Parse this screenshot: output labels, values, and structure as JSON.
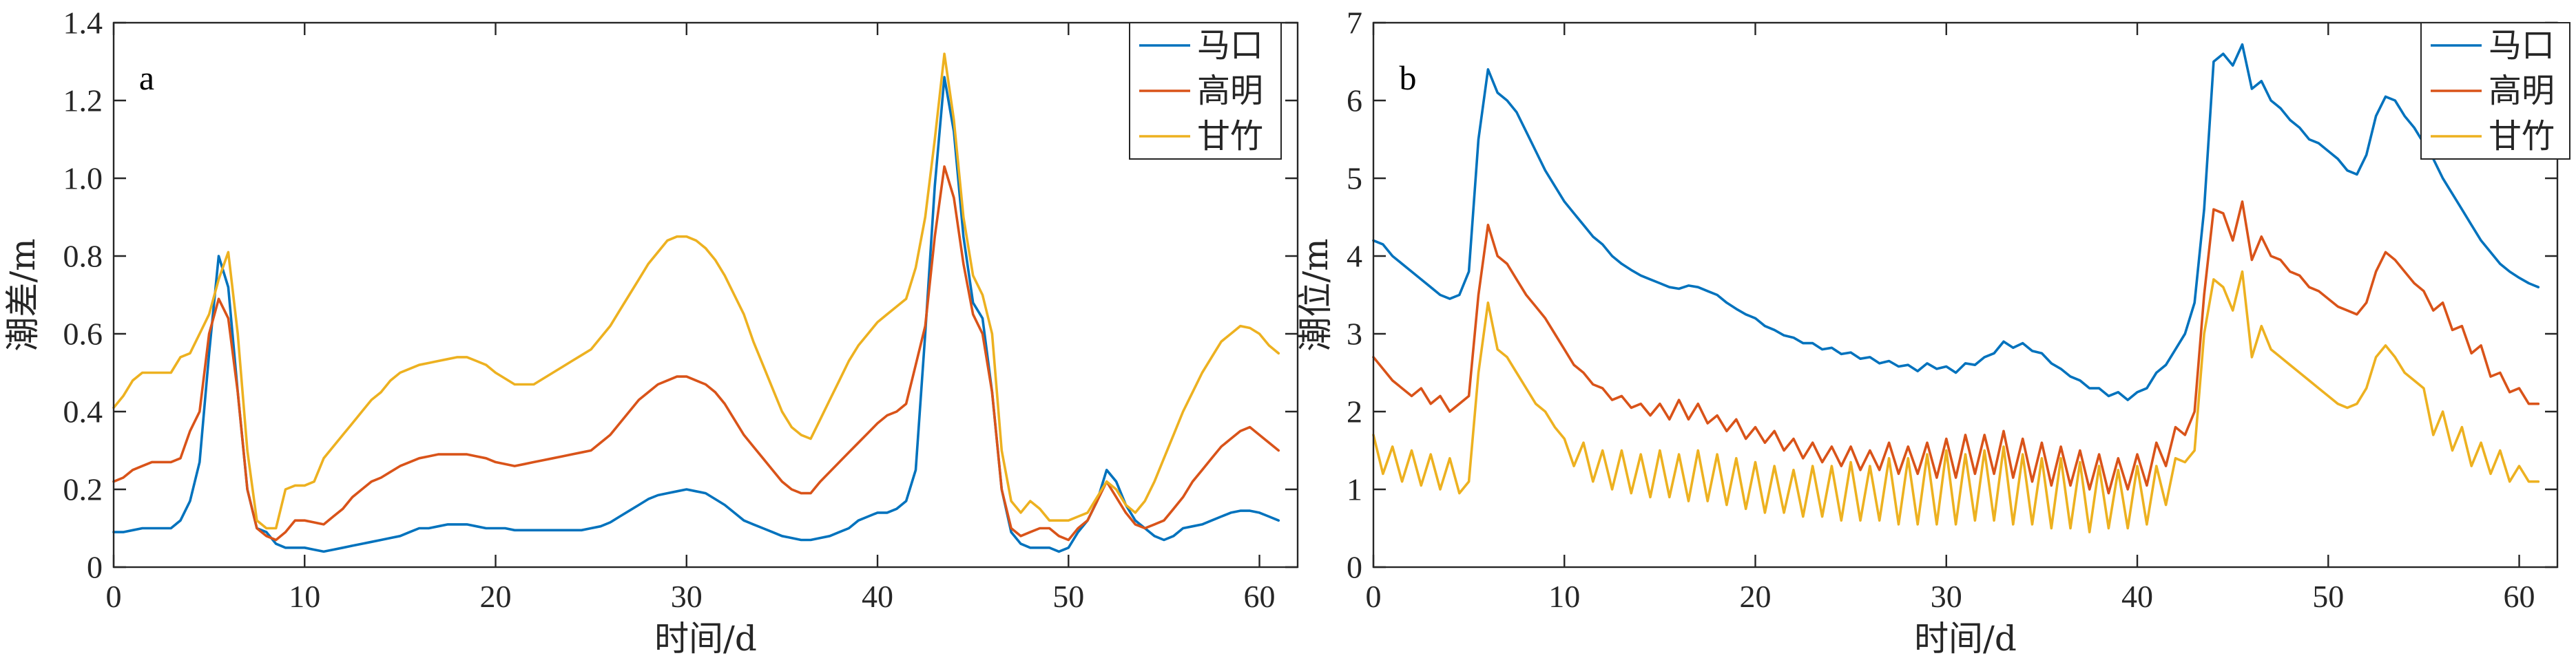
{
  "chart_data": [
    {
      "type": "line",
      "panel_label": "a",
      "xlabel": "时间/d",
      "ylabel": "潮差/m",
      "xlim": [
        0,
        62
      ],
      "ylim": [
        0,
        1.4
      ],
      "xticks": [
        0,
        10,
        20,
        30,
        40,
        50,
        60
      ],
      "xtick_labels": [
        "0",
        "10",
        "20",
        "30",
        "40",
        "50",
        "60"
      ],
      "yticks": [
        0,
        0.2,
        0.4,
        0.6,
        0.8,
        1.0,
        1.2,
        1.4
      ],
      "ytick_labels": [
        "0",
        "0.2",
        "0.4",
        "0.6",
        "0.8",
        "1.0",
        "1.2",
        "1.4"
      ],
      "grid": false,
      "legend": "top-right",
      "x": [
        0,
        0.5,
        1,
        1.5,
        2,
        2.5,
        3,
        3.5,
        4,
        4.5,
        5,
        5.5,
        6,
        6.5,
        7,
        7.5,
        8,
        8.5,
        9,
        9.5,
        10,
        10.5,
        11,
        11.5,
        12,
        12.5,
        13,
        13.5,
        14,
        14.5,
        15,
        15.5,
        16,
        16.5,
        17,
        17.5,
        18,
        18.5,
        19,
        19.5,
        20,
        20.5,
        21,
        21.5,
        22,
        22.5,
        23,
        23.5,
        24,
        24.5,
        25,
        25.5,
        26,
        26.5,
        27,
        27.5,
        28,
        28.5,
        29,
        29.5,
        30,
        30.5,
        31,
        31.5,
        32,
        32.5,
        33,
        33.5,
        34,
        34.5,
        35,
        35.5,
        36,
        36.5,
        37,
        37.5,
        38,
        38.5,
        39,
        39.5,
        40,
        40.5,
        41,
        41.5,
        42,
        42.5,
        43,
        43.5,
        44,
        44.5,
        45,
        45.5,
        46,
        46.5,
        47,
        47.5,
        48,
        48.5,
        49,
        49.5,
        50,
        50.5,
        51,
        51.5,
        52,
        52.5,
        53,
        53.5,
        54,
        54.5,
        55,
        55.5,
        56,
        56.5,
        57,
        57.5,
        58,
        58.5,
        59,
        59.5,
        60,
        60.5,
        61
      ],
      "series": [
        {
          "name": "马口",
          "color": "#0072BD",
          "values": [
            0.09,
            0.09,
            0.095,
            0.1,
            0.1,
            0.1,
            0.1,
            0.12,
            0.17,
            0.27,
            0.55,
            0.8,
            0.72,
            0.45,
            0.2,
            0.1,
            0.09,
            0.06,
            0.05,
            0.05,
            0.05,
            0.045,
            0.04,
            0.045,
            0.05,
            0.055,
            0.06,
            0.065,
            0.07,
            0.075,
            0.08,
            0.09,
            0.1,
            0.1,
            0.105,
            0.11,
            0.11,
            0.11,
            0.105,
            0.1,
            0.1,
            0.1,
            0.095,
            0.095,
            0.095,
            0.095,
            0.095,
            0.095,
            0.095,
            0.095,
            0.1,
            0.105,
            0.115,
            0.13,
            0.145,
            0.16,
            0.175,
            0.185,
            0.19,
            0.195,
            0.2,
            0.195,
            0.19,
            0.175,
            0.16,
            0.14,
            0.12,
            0.11,
            0.1,
            0.09,
            0.08,
            0.075,
            0.07,
            0.07,
            0.075,
            0.08,
            0.09,
            0.1,
            0.12,
            0.13,
            0.14,
            0.14,
            0.15,
            0.17,
            0.25,
            0.6,
            0.98,
            1.26,
            1.12,
            0.85,
            0.68,
            0.64,
            0.45,
            0.2,
            0.09,
            0.06,
            0.05,
            0.05,
            0.05,
            0.04,
            0.05,
            0.09,
            0.12,
            0.17,
            0.25,
            0.22,
            0.16,
            0.12,
            0.1,
            0.08,
            0.07,
            0.08,
            0.1,
            0.105,
            0.11,
            0.12,
            0.13,
            0.14,
            0.145,
            0.145,
            0.14,
            0.13,
            0.12
          ]
        },
        {
          "name": "高明",
          "color": "#D95319",
          "values": [
            0.22,
            0.23,
            0.25,
            0.26,
            0.27,
            0.27,
            0.27,
            0.28,
            0.35,
            0.4,
            0.6,
            0.69,
            0.64,
            0.45,
            0.2,
            0.1,
            0.08,
            0.07,
            0.09,
            0.12,
            0.12,
            0.115,
            0.11,
            0.13,
            0.15,
            0.18,
            0.2,
            0.22,
            0.23,
            0.245,
            0.26,
            0.27,
            0.28,
            0.285,
            0.29,
            0.29,
            0.29,
            0.29,
            0.285,
            0.28,
            0.27,
            0.265,
            0.26,
            0.265,
            0.27,
            0.275,
            0.28,
            0.285,
            0.29,
            0.295,
            0.3,
            0.32,
            0.34,
            0.37,
            0.4,
            0.43,
            0.45,
            0.47,
            0.48,
            0.49,
            0.49,
            0.48,
            0.47,
            0.45,
            0.42,
            0.38,
            0.34,
            0.31,
            0.28,
            0.25,
            0.22,
            0.2,
            0.19,
            0.19,
            0.22,
            0.245,
            0.27,
            0.295,
            0.32,
            0.345,
            0.37,
            0.39,
            0.4,
            0.42,
            0.52,
            0.62,
            0.85,
            1.03,
            0.95,
            0.78,
            0.65,
            0.6,
            0.45,
            0.2,
            0.1,
            0.08,
            0.09,
            0.1,
            0.1,
            0.08,
            0.07,
            0.1,
            0.12,
            0.17,
            0.22,
            0.18,
            0.14,
            0.11,
            0.1,
            0.11,
            0.12,
            0.15,
            0.18,
            0.22,
            0.25,
            0.28,
            0.31,
            0.33,
            0.35,
            0.36,
            0.34,
            0.32,
            0.3
          ]
        },
        {
          "name": "甘竹",
          "color": "#EDB120",
          "values": [
            0.41,
            0.44,
            0.48,
            0.5,
            0.5,
            0.5,
            0.5,
            0.54,
            0.55,
            0.6,
            0.65,
            0.74,
            0.81,
            0.6,
            0.3,
            0.12,
            0.1,
            0.1,
            0.2,
            0.21,
            0.21,
            0.22,
            0.28,
            0.31,
            0.34,
            0.37,
            0.4,
            0.43,
            0.45,
            0.48,
            0.5,
            0.51,
            0.52,
            0.525,
            0.53,
            0.535,
            0.54,
            0.54,
            0.53,
            0.52,
            0.5,
            0.485,
            0.47,
            0.47,
            0.47,
            0.485,
            0.5,
            0.515,
            0.53,
            0.545,
            0.56,
            0.59,
            0.62,
            0.66,
            0.7,
            0.74,
            0.78,
            0.81,
            0.84,
            0.85,
            0.85,
            0.84,
            0.82,
            0.79,
            0.75,
            0.7,
            0.65,
            0.58,
            0.52,
            0.46,
            0.4,
            0.36,
            0.34,
            0.33,
            0.38,
            0.43,
            0.48,
            0.53,
            0.57,
            0.6,
            0.63,
            0.65,
            0.67,
            0.69,
            0.77,
            0.9,
            1.1,
            1.32,
            1.15,
            0.9,
            0.75,
            0.7,
            0.6,
            0.3,
            0.17,
            0.14,
            0.17,
            0.15,
            0.12,
            0.12,
            0.12,
            0.13,
            0.14,
            0.18,
            0.22,
            0.2,
            0.16,
            0.14,
            0.17,
            0.22,
            0.28,
            0.34,
            0.4,
            0.45,
            0.5,
            0.54,
            0.58,
            0.6,
            0.62,
            0.615,
            0.6,
            0.57,
            0.55
          ]
        }
      ]
    },
    {
      "type": "line",
      "panel_label": "b",
      "xlabel": "时间/d",
      "ylabel": "潮位/m",
      "xlim": [
        0,
        62
      ],
      "ylim": [
        0,
        7
      ],
      "xticks": [
        0,
        10,
        20,
        30,
        40,
        50,
        60
      ],
      "xtick_labels": [
        "0",
        "10",
        "20",
        "30",
        "40",
        "50",
        "60"
      ],
      "yticks": [
        0,
        1,
        2,
        3,
        4,
        5,
        6,
        7
      ],
      "ytick_labels": [
        "0",
        "1",
        "2",
        "3",
        "4",
        "5",
        "6",
        "7"
      ],
      "grid": false,
      "legend": "top-right",
      "x": [
        0,
        0.5,
        1,
        1.5,
        2,
        2.5,
        3,
        3.5,
        4,
        4.5,
        5,
        5.5,
        6,
        6.5,
        7,
        7.5,
        8,
        8.5,
        9,
        9.5,
        10,
        10.5,
        11,
        11.5,
        12,
        12.5,
        13,
        13.5,
        14,
        14.5,
        15,
        15.5,
        16,
        16.5,
        17,
        17.5,
        18,
        18.5,
        19,
        19.5,
        20,
        20.5,
        21,
        21.5,
        22,
        22.5,
        23,
        23.5,
        24,
        24.5,
        25,
        25.5,
        26,
        26.5,
        27,
        27.5,
        28,
        28.5,
        29,
        29.5,
        30,
        30.5,
        31,
        31.5,
        32,
        32.5,
        33,
        33.5,
        34,
        34.5,
        35,
        35.5,
        36,
        36.5,
        37,
        37.5,
        38,
        38.5,
        39,
        39.5,
        40,
        40.5,
        41,
        41.5,
        42,
        42.5,
        43,
        43.5,
        44,
        44.5,
        45,
        45.5,
        46,
        46.5,
        47,
        47.5,
        48,
        48.5,
        49,
        49.5,
        50,
        50.5,
        51,
        51.5,
        52,
        52.5,
        53,
        53.5,
        54,
        54.5,
        55,
        55.5,
        56,
        56.5,
        57,
        57.5,
        58,
        58.5,
        59,
        59.5,
        60,
        60.5,
        61
      ],
      "series": [
        {
          "name": "马口",
          "color": "#0072BD",
          "values": [
            4.2,
            4.15,
            4.0,
            3.9,
            3.8,
            3.7,
            3.6,
            3.5,
            3.45,
            3.5,
            3.8,
            5.5,
            6.4,
            6.1,
            6.0,
            5.85,
            5.6,
            5.35,
            5.1,
            4.9,
            4.7,
            4.55,
            4.4,
            4.25,
            4.15,
            4.0,
            3.9,
            3.82,
            3.75,
            3.7,
            3.65,
            3.6,
            3.58,
            3.62,
            3.6,
            3.55,
            3.5,
            3.4,
            3.32,
            3.25,
            3.2,
            3.1,
            3.05,
            2.98,
            2.95,
            2.88,
            2.88,
            2.8,
            2.82,
            2.74,
            2.76,
            2.68,
            2.7,
            2.62,
            2.65,
            2.58,
            2.6,
            2.52,
            2.62,
            2.55,
            2.58,
            2.5,
            2.62,
            2.6,
            2.7,
            2.75,
            2.9,
            2.82,
            2.88,
            2.78,
            2.75,
            2.62,
            2.55,
            2.45,
            2.4,
            2.3,
            2.3,
            2.2,
            2.25,
            2.15,
            2.25,
            2.3,
            2.5,
            2.6,
            2.8,
            3.0,
            3.4,
            4.6,
            6.5,
            6.6,
            6.45,
            6.72,
            6.15,
            6.25,
            6.0,
            5.9,
            5.75,
            5.65,
            5.5,
            5.45,
            5.35,
            5.25,
            5.1,
            5.05,
            5.3,
            5.8,
            6.05,
            6.0,
            5.8,
            5.65,
            5.45,
            5.25,
            5.0,
            4.8,
            4.6,
            4.4,
            4.2,
            4.05,
            3.9,
            3.8,
            3.72,
            3.65,
            3.6
          ]
        },
        {
          "name": "高明",
          "color": "#D95319",
          "values": [
            2.7,
            2.55,
            2.4,
            2.3,
            2.2,
            2.3,
            2.1,
            2.2,
            2.0,
            2.1,
            2.2,
            3.5,
            4.4,
            4.0,
            3.9,
            3.7,
            3.5,
            3.35,
            3.2,
            3.0,
            2.8,
            2.6,
            2.5,
            2.35,
            2.3,
            2.15,
            2.2,
            2.05,
            2.1,
            1.95,
            2.1,
            1.9,
            2.15,
            1.9,
            2.1,
            1.85,
            1.95,
            1.75,
            1.9,
            1.65,
            1.8,
            1.6,
            1.75,
            1.5,
            1.65,
            1.4,
            1.6,
            1.35,
            1.55,
            1.3,
            1.55,
            1.25,
            1.5,
            1.25,
            1.6,
            1.2,
            1.55,
            1.2,
            1.6,
            1.15,
            1.65,
            1.15,
            1.7,
            1.2,
            1.7,
            1.2,
            1.75,
            1.15,
            1.65,
            1.1,
            1.6,
            1.05,
            1.55,
            1.05,
            1.5,
            1.0,
            1.45,
            0.95,
            1.4,
            1.0,
            1.45,
            1.05,
            1.6,
            1.3,
            1.8,
            1.7,
            2.0,
            3.5,
            4.6,
            4.55,
            4.2,
            4.7,
            3.95,
            4.25,
            4.0,
            3.95,
            3.8,
            3.75,
            3.6,
            3.55,
            3.45,
            3.35,
            3.3,
            3.25,
            3.4,
            3.8,
            4.05,
            3.95,
            3.8,
            3.65,
            3.55,
            3.3,
            3.4,
            3.05,
            3.1,
            2.75,
            2.85,
            2.45,
            2.5,
            2.25,
            2.3,
            2.1,
            2.1
          ]
        },
        {
          "name": "甘竹",
          "color": "#EDB120",
          "values": [
            1.7,
            1.2,
            1.55,
            1.1,
            1.5,
            1.05,
            1.45,
            1.0,
            1.4,
            0.95,
            1.1,
            2.5,
            3.4,
            2.8,
            2.7,
            2.5,
            2.3,
            2.1,
            2.0,
            1.8,
            1.65,
            1.3,
            1.6,
            1.1,
            1.5,
            1.0,
            1.5,
            0.95,
            1.45,
            0.9,
            1.5,
            0.9,
            1.45,
            0.85,
            1.5,
            0.85,
            1.45,
            0.8,
            1.4,
            0.75,
            1.35,
            0.7,
            1.3,
            0.7,
            1.25,
            0.65,
            1.3,
            0.65,
            1.3,
            0.6,
            1.35,
            0.6,
            1.3,
            0.6,
            1.4,
            0.55,
            1.4,
            0.55,
            1.45,
            0.55,
            1.5,
            0.55,
            1.45,
            0.6,
            1.5,
            0.6,
            1.55,
            0.55,
            1.45,
            0.55,
            1.4,
            0.5,
            1.4,
            0.5,
            1.35,
            0.45,
            1.3,
            0.5,
            1.25,
            0.5,
            1.3,
            0.55,
            1.3,
            0.8,
            1.4,
            1.35,
            1.5,
            3.0,
            3.7,
            3.6,
            3.3,
            3.8,
            2.7,
            3.1,
            2.8,
            2.7,
            2.6,
            2.5,
            2.4,
            2.3,
            2.2,
            2.1,
            2.05,
            2.1,
            2.3,
            2.7,
            2.85,
            2.7,
            2.5,
            2.4,
            2.3,
            1.7,
            2.0,
            1.5,
            1.8,
            1.3,
            1.6,
            1.2,
            1.5,
            1.1,
            1.3,
            1.1,
            1.1
          ]
        }
      ]
    }
  ]
}
